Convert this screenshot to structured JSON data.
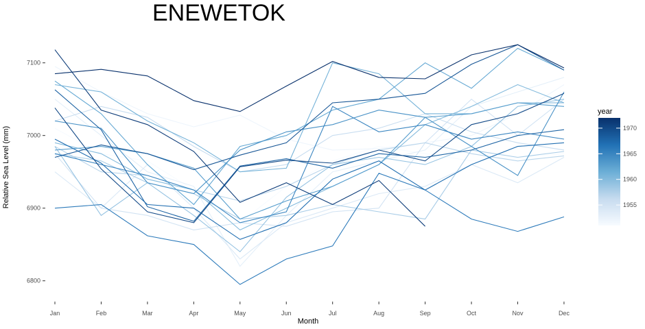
{
  "chart_data": {
    "type": "line",
    "title": "ENEWETOK",
    "xlabel": "Month",
    "ylabel": "Relative Sea Level (mm)",
    "categories": [
      "Jan",
      "Feb",
      "Mar",
      "Apr",
      "May",
      "Jun",
      "Jul",
      "Aug",
      "Sep",
      "Oct",
      "Nov",
      "Dec"
    ],
    "ylim": [
      6778,
      7128
    ],
    "yticks": [
      6800,
      6900,
      7000,
      7100
    ],
    "grid": false,
    "legend": {
      "title": "year",
      "position": "right",
      "range": [
        1951,
        1972
      ],
      "ticks": [
        1955,
        1960,
        1965,
        1970
      ],
      "colors": [
        "#f7fbff",
        "#c6dbef",
        "#6baed6",
        "#2171b5",
        "#08306b"
      ]
    },
    "series": [
      {
        "year": 1951,
        "values": [
          7010,
          6975,
          6965,
          6925,
          6880,
          6930,
          6965,
          6985,
          6975,
          6965,
          6970,
          6975
        ]
      },
      {
        "year": 1952,
        "values": [
          7095,
          7060,
          7030,
          7012,
          7028,
          6995,
          6980,
          6982,
          6990,
          7000,
          7030,
          7070
        ]
      },
      {
        "year": 1953,
        "values": [
          7050,
          7000,
          6950,
          6930,
          6820,
          6890,
          6950,
          6965,
          6980,
          7040,
          7060,
          7080
        ]
      },
      {
        "year": 1954,
        "values": [
          6950,
          6900,
          6960,
          6900,
          6830,
          6880,
          6900,
          6920,
          6930,
          6960,
          6935,
          6970
        ]
      },
      {
        "year": 1955,
        "values": [
          6975,
          6900,
          6890,
          6870,
          6880,
          6875,
          6895,
          6900,
          6990,
          7050,
          7000,
          7050
        ]
      },
      {
        "year": 1956,
        "values": [
          7020,
          7040,
          7025,
          6985,
          6950,
          6960,
          7000,
          7010,
          7030,
          7005,
          6990,
          6980
        ]
      },
      {
        "year": 1957,
        "values": [
          6985,
          6950,
          6945,
          6925,
          6910,
          6930,
          6960,
          6980,
          6990,
          6975,
          6965,
          6972
        ]
      },
      {
        "year": 1958,
        "values": [
          6975,
          6965,
          6935,
          6920,
          6885,
          6890,
          6905,
          6895,
          6885,
          6980,
          6970,
          6978
        ]
      },
      {
        "year": 1959,
        "values": [
          6985,
          6890,
          6935,
          6890,
          6840,
          6915,
          6960,
          6970,
          6960,
          6985,
          7040,
          7050
        ]
      },
      {
        "year": 1960,
        "values": [
          6990,
          6975,
          6940,
          6925,
          6870,
          6900,
          6930,
          6960,
          7015,
          7040,
          7070,
          7045
        ]
      },
      {
        "year": 1961,
        "values": [
          7070,
          7060,
          7020,
          6990,
          6950,
          6955,
          7100,
          7085,
          7030,
          7030,
          7045,
          7045
        ]
      },
      {
        "year": 1962,
        "values": [
          7075,
          7030,
          6960,
          6905,
          6985,
          7000,
          7035,
          7050,
          7100,
          7065,
          7120,
          7090
        ]
      },
      {
        "year": 1963,
        "values": [
          6980,
          6985,
          6975,
          6955,
          6885,
          6910,
          6930,
          6960,
          7025,
          7030,
          7045,
          7040
        ]
      },
      {
        "year": 1964,
        "values": [
          7020,
          7010,
          6935,
          6920,
          6980,
          7005,
          7015,
          7035,
          7025,
          6985,
          6945,
          7060
        ]
      },
      {
        "year": 1965,
        "values": [
          6975,
          6960,
          6945,
          6925,
          6880,
          6895,
          7040,
          7005,
          7015,
          6995,
          7005,
          6995
        ]
      },
      {
        "year": 1966,
        "values": [
          6900,
          6905,
          6862,
          6850,
          6795,
          6830,
          6848,
          6948,
          6925,
          6885,
          6868,
          6888
        ]
      },
      {
        "year": 1967,
        "values": [
          6995,
          6962,
          6905,
          6900,
          6857,
          6880,
          6940,
          6965,
          6925,
          6960,
          6985,
          6990
        ]
      },
      {
        "year": 1968,
        "values": [
          7063,
          7008,
          6902,
          6882,
          6958,
          6968,
          6955,
          6975,
          6970,
          6980,
          7000,
          7008
        ]
      },
      {
        "year": 1969,
        "values": [
          6970,
          6987,
          6975,
          6953,
          6973,
          6990,
          7045,
          7050,
          7058,
          7098,
          7125,
          7090
        ]
      },
      {
        "year": 1970,
        "values": [
          7038,
          6954,
          6895,
          6880,
          6957,
          6966,
          6962,
          6980,
          6965,
          7015,
          7030,
          7058
        ]
      },
      {
        "year": 1971,
        "values": [
          7118,
          7035,
          7015,
          6978,
          6908,
          6935,
          6905,
          6938,
          6875,
          null,
          null,
          null
        ]
      },
      {
        "year": 1972,
        "values": [
          7085,
          7091,
          7082,
          7048,
          7033,
          7068,
          7102,
          7080,
          7078,
          7111,
          7125,
          7093
        ]
      }
    ]
  }
}
